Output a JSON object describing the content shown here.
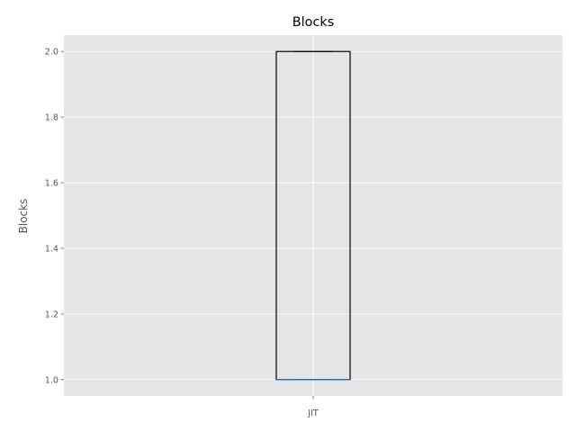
{
  "chart_data": {
    "type": "box",
    "title": "Blocks",
    "xlabel": "",
    "ylabel": "Blocks",
    "categories": [
      "JIT"
    ],
    "boxes": [
      {
        "category": "JIT",
        "min": 1.0,
        "q1": 1.0,
        "median": 1.0,
        "q3": 2.0,
        "max": 2.0
      }
    ],
    "ylim": [
      0.95,
      2.05
    ],
    "yticks": [
      1.0,
      1.2,
      1.4,
      1.6,
      1.8,
      2.0
    ],
    "ytick_labels": [
      "1.0",
      "1.2",
      "1.4",
      "1.6",
      "1.8",
      "2.0"
    ],
    "grid": true,
    "colors": {
      "background": "#e5e5e5",
      "grid": "#ffffff",
      "box": "#000000",
      "median": "#1f77b4",
      "tick_text": "#555555"
    }
  }
}
